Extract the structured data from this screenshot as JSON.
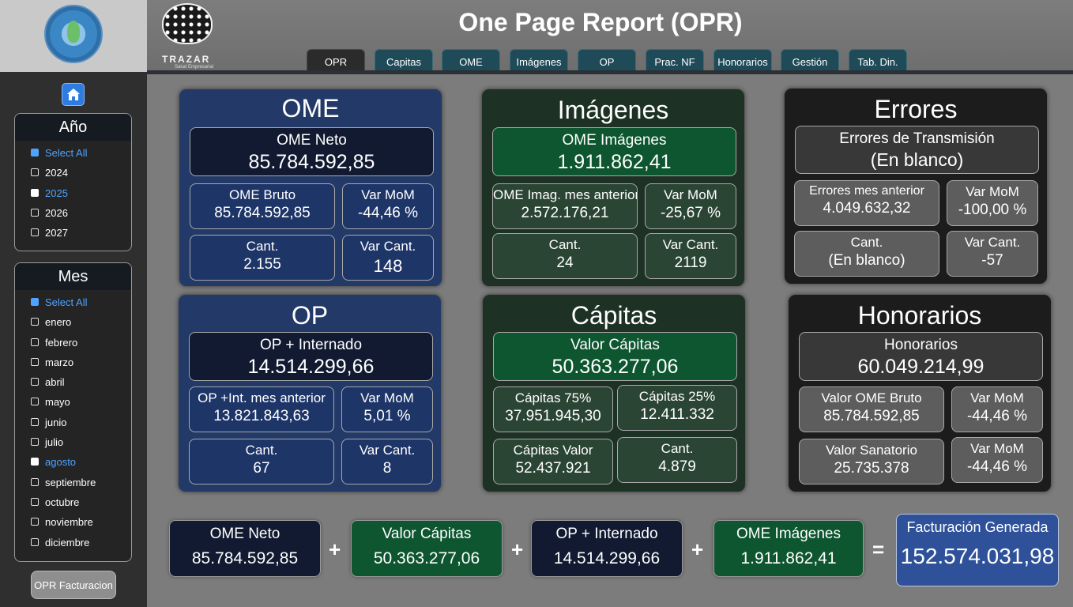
{
  "header": {
    "title": "One Page Report (OPR)",
    "brand": "TRAZAR",
    "brand_sub": "Salud Empresarial",
    "tabs": [
      "OPR",
      "Capitas",
      "OME",
      "Imágenes",
      "OP",
      "Prac. NF",
      "Honorarios",
      "Gestión",
      "Tab. Din."
    ],
    "active_tab": "OPR"
  },
  "sidebar": {
    "year_slicer": {
      "title": "Año",
      "items": [
        "Select All",
        "2024",
        "2025",
        "2026",
        "2027"
      ],
      "selected": "2025"
    },
    "month_slicer": {
      "title": "Mes",
      "items": [
        "Select All",
        "enero",
        "febrero",
        "marzo",
        "abril",
        "mayo",
        "junio",
        "julio",
        "agosto",
        "septiembre",
        "octubre",
        "noviembre",
        "diciembre"
      ],
      "selected": "agosto"
    },
    "opr_button": "OPR Facturacion"
  },
  "cards": {
    "ome": {
      "title": "OME",
      "main_label": "OME Neto",
      "main_value": "85.784.592,85",
      "bruto_label": "OME Bruto",
      "bruto_value": "85.784.592,85",
      "mom_label": "Var MoM",
      "mom_value": "-44,46 %",
      "cant_label": "Cant.",
      "cant_value": "2.155",
      "varcant_label": "Var Cant.",
      "varcant_value": "148"
    },
    "imagenes": {
      "title": "Imágenes",
      "main_label": "OME Imágenes",
      "main_value": "1.911.862,41",
      "prev_label": "OME Imag. mes anterior",
      "prev_value": "2.572.176,21",
      "mom_label": "Var MoM",
      "mom_value": "-25,67 %",
      "cant_label": "Cant.",
      "cant_value": "24",
      "varcant_label": "Var Cant.",
      "varcant_value": "2119"
    },
    "errores": {
      "title": "Errores",
      "main_label": "Errores de Transmisión",
      "main_value": "(En blanco)",
      "prev_label": "Errores mes anterior",
      "prev_value": "4.049.632,32",
      "mom_label": "Var MoM",
      "mom_value": "-100,00 %",
      "cant_label": "Cant.",
      "cant_value": "(En blanco)",
      "varcant_label": "Var Cant.",
      "varcant_value": "-57"
    },
    "op": {
      "title": "OP",
      "main_label": "OP + Internado",
      "main_value": "14.514.299,66",
      "prev_label": "OP +Int. mes anterior",
      "prev_value": "13.821.843,63",
      "mom_label": "Var MoM",
      "mom_value": "5,01 %",
      "cant_label": "Cant.",
      "cant_value": "67",
      "varcant_label": "Var Cant.",
      "varcant_value": "8"
    },
    "capitas": {
      "title": "Cápitas",
      "main_label": "Valor Cápitas",
      "main_value": "50.363.277,06",
      "c75_label": "Cápitas 75%",
      "c75_value": "37.951.945,30",
      "c25_label": "Cápitas 25%",
      "c25_value": "12.411.332",
      "valor_label": "Cápitas Valor",
      "valor_value": "52.437.921",
      "cant_label": "Cant.",
      "cant_value": "4.879"
    },
    "honorarios": {
      "title": "Honorarios",
      "main_label": "Honorarios",
      "main_value": "60.049.214,99",
      "ome_label": "Valor OME Bruto",
      "ome_value": "85.784.592,85",
      "mom1_label": "Var MoM",
      "mom1_value": "-44,46 %",
      "sanat_label": "Valor Sanatorio",
      "sanat_value": "25.735.378",
      "mom2_label": "Var MoM",
      "mom2_value": "-44,46 %"
    }
  },
  "summary": {
    "items": [
      {
        "label": "OME Neto",
        "value": "85.784.592,85"
      },
      {
        "label": "Valor Cápitas",
        "value": "50.363.277,06"
      },
      {
        "label": "OP + Internado",
        "value": "14.514.299,66"
      },
      {
        "label": "OME Imágenes",
        "value": "1.911.862,41"
      }
    ],
    "plus": "+",
    "equals": "=",
    "total_label": "Facturación Generada",
    "total_value": "152.574.031,98"
  },
  "colors": {
    "blue_card": "#233a68",
    "green_card": "#1d3124",
    "dark_card": "#1c1c1c",
    "tab": "#1f4a58",
    "accent": "#4ea3ff",
    "total_box": "#2e5199"
  },
  "icons": {
    "home": "home-icon",
    "logo": "company-logo-icon",
    "trazar": "trazar-brain-logo"
  }
}
